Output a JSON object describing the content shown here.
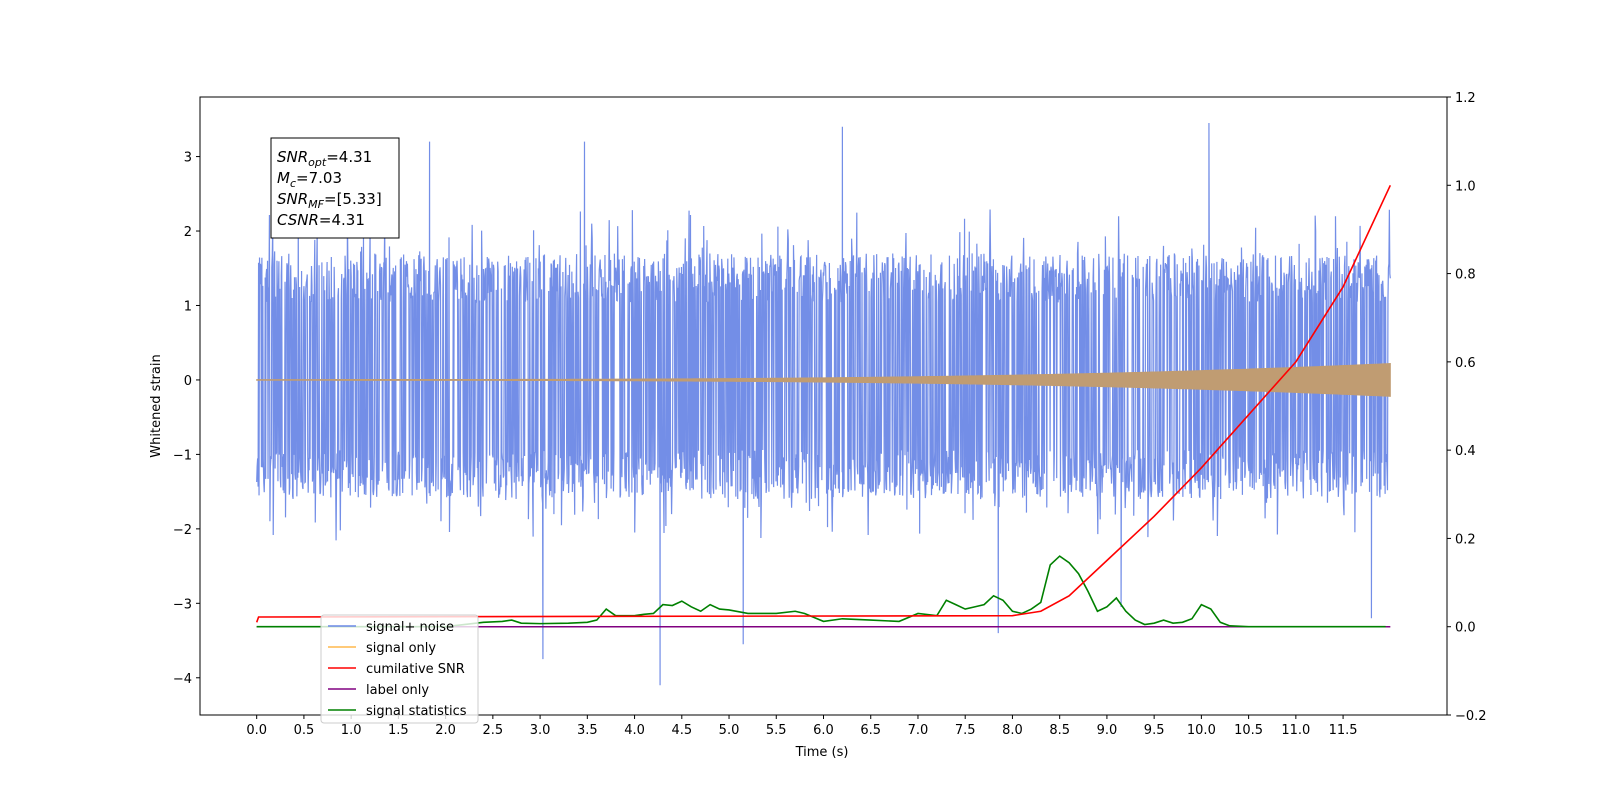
{
  "chart_data": {
    "type": "line",
    "title": "",
    "xlabel": "Time (s)",
    "ylabel": "Whitened strain",
    "xlim": [
      -0.6,
      12.6
    ],
    "ylim": [
      -4.5,
      3.8
    ],
    "y2lim": [
      -0.2,
      1.2
    ],
    "xticks": [
      "0.0",
      "0.5",
      "1.0",
      "1.5",
      "2.0",
      "2.5",
      "3.0",
      "3.5",
      "4.0",
      "4.5",
      "5.0",
      "5.5",
      "6.0",
      "6.5",
      "7.0",
      "7.5",
      "8.0",
      "8.5",
      "9.0",
      "9.5",
      "10.0",
      "10.5",
      "11.0",
      "11.5"
    ],
    "xtick_values": [
      0,
      0.5,
      1,
      1.5,
      2,
      2.5,
      3,
      3.5,
      4,
      4.5,
      5,
      5.5,
      6,
      6.5,
      7,
      7.5,
      8,
      8.5,
      9,
      9.5,
      10,
      10.5,
      11,
      11.5
    ],
    "yticks": [
      "3",
      "2",
      "1",
      "0",
      "−1",
      "−2",
      "−3",
      "−4"
    ],
    "ytick_values": [
      3,
      2,
      1,
      0,
      -1,
      -2,
      -3,
      -4
    ],
    "y2ticks": [
      "1.2",
      "1.0",
      "0.8",
      "0.6",
      "0.4",
      "0.2",
      "0.0",
      "−0.2"
    ],
    "y2tick_values": [
      1.2,
      1.0,
      0.8,
      0.6,
      0.4,
      0.2,
      0.0,
      -0.2
    ],
    "grid": false,
    "legend_position": "lower-left",
    "annotation": {
      "lines": [
        {
          "base": "SNR",
          "sub": "opt",
          "value": "=4.31"
        },
        {
          "base": "M",
          "sub": "c",
          "value": "=7.03"
        },
        {
          "base": "SNR",
          "sub": "MF",
          "value": "=[5.33]"
        },
        {
          "base": "CSNR",
          "sub": "",
          "value": "=4.31"
        }
      ]
    },
    "series": [
      {
        "name": "signal+ noise",
        "color": "#6b88e6",
        "axis": "left",
        "kind": "noise",
        "duration": 12,
        "typical_range": [
          -1.6,
          1.7
        ],
        "extremes": [
          [
            1.83,
            3.2
          ],
          [
            3.47,
            3.2
          ],
          [
            6.2,
            3.4
          ],
          [
            10.08,
            3.45
          ],
          [
            3.03,
            -3.75
          ],
          [
            4.27,
            -4.1
          ],
          [
            5.15,
            -3.55
          ],
          [
            7.85,
            -3.4
          ],
          [
            9.15,
            -3.05
          ],
          [
            11.8,
            -3.2
          ]
        ]
      },
      {
        "name": "signal only",
        "color": "#ffb94d",
        "axis": "left",
        "kind": "chirp",
        "amplitude_start": 0.005,
        "amplitude_end": 0.22,
        "x_end": 12.0
      },
      {
        "name": "cumilative SNR",
        "color": "#ff0000",
        "axis": "right",
        "x": [
          0,
          0.02,
          8.0,
          8.3,
          8.6,
          9.0,
          9.5,
          10.0,
          10.5,
          11.0,
          11.5,
          12.0
        ],
        "values": [
          0.01,
          0.022,
          0.025,
          0.035,
          0.07,
          0.15,
          0.25,
          0.36,
          0.48,
          0.6,
          0.77,
          1.0
        ]
      },
      {
        "name": "label only",
        "color": "#800080",
        "axis": "right",
        "x": [
          0,
          12
        ],
        "values": [
          0.0,
          0.0
        ]
      },
      {
        "name": "signal statistics",
        "color": "#008000",
        "axis": "right",
        "x": [
          0.0,
          0.5,
          1.0,
          1.5,
          2.0,
          2.4,
          2.6,
          2.7,
          2.8,
          3.0,
          3.3,
          3.5,
          3.6,
          3.7,
          3.8,
          4.0,
          4.1,
          4.2,
          4.3,
          4.4,
          4.5,
          4.6,
          4.7,
          4.8,
          4.9,
          5.0,
          5.2,
          5.5,
          5.7,
          5.8,
          6.0,
          6.2,
          6.5,
          6.8,
          7.0,
          7.2,
          7.3,
          7.4,
          7.5,
          7.6,
          7.7,
          7.8,
          7.9,
          8.0,
          8.1,
          8.2,
          8.3,
          8.4,
          8.5,
          8.6,
          8.7,
          8.8,
          8.9,
          9.0,
          9.1,
          9.2,
          9.3,
          9.4,
          9.5,
          9.6,
          9.7,
          9.8,
          9.9,
          10.0,
          10.1,
          10.2,
          10.3,
          10.5,
          11.0,
          11.5,
          11.95
        ],
        "values": [
          0.0,
          0.0,
          0.0,
          0.0,
          0.0,
          0.01,
          0.012,
          0.015,
          0.008,
          0.007,
          0.008,
          0.01,
          0.015,
          0.04,
          0.025,
          0.025,
          0.028,
          0.03,
          0.05,
          0.048,
          0.058,
          0.045,
          0.035,
          0.05,
          0.04,
          0.038,
          0.03,
          0.03,
          0.035,
          0.03,
          0.012,
          0.018,
          0.015,
          0.012,
          0.03,
          0.025,
          0.06,
          0.05,
          0.04,
          0.045,
          0.05,
          0.07,
          0.06,
          0.035,
          0.03,
          0.04,
          0.055,
          0.14,
          0.16,
          0.145,
          0.12,
          0.08,
          0.035,
          0.045,
          0.065,
          0.035,
          0.015,
          0.005,
          0.008,
          0.015,
          0.008,
          0.01,
          0.018,
          0.05,
          0.04,
          0.01,
          0.002,
          0.0,
          0.0,
          0.0,
          0.0
        ]
      }
    ]
  }
}
